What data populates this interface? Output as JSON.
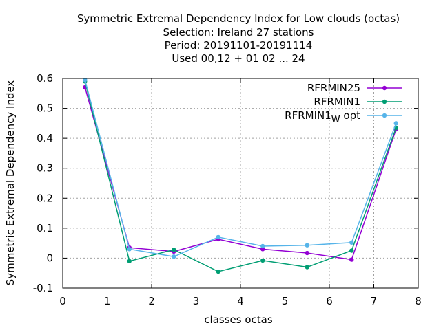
{
  "chart_data": {
    "type": "line",
    "title_lines": [
      "Symmetric Extremal Dependency Index  for Low clouds (octas)",
      "Selection: Ireland      27 stations",
      "Period: 20191101-20191114",
      "Used  00,12  + 01 02 ... 24"
    ],
    "xlabel": "classes octas",
    "ylabel": "Symmetric Extremal Dependency Index",
    "xlim": [
      0,
      8
    ],
    "ylim": [
      -0.1,
      0.6
    ],
    "xticks": [
      0,
      1,
      2,
      3,
      4,
      5,
      6,
      7,
      8
    ],
    "yticks": [
      -0.1,
      0,
      0.1,
      0.2,
      0.3,
      0.4,
      0.5,
      0.6
    ],
    "ytick_labels": [
      "-0.1",
      "0",
      "0.1",
      "0.2",
      "0.3",
      "0.4",
      "0.5",
      "0.6"
    ],
    "grid": true,
    "legend_position": "top-right",
    "x": [
      0.5,
      1.5,
      2.5,
      3.5,
      4.5,
      5.5,
      6.5,
      7.5
    ],
    "series": [
      {
        "name": "RFRMIN25",
        "legend_main": "RFRMIN25",
        "legend_sub": "",
        "legend_suffix": "",
        "color": "#9400d3",
        "values": [
          0.57,
          0.035,
          0.022,
          0.063,
          0.03,
          0.017,
          -0.005,
          0.43
        ]
      },
      {
        "name": "RFRMIN1",
        "legend_main": "RFRMIN1",
        "legend_sub": "",
        "legend_suffix": "",
        "color": "#009e73",
        "values": [
          0.59,
          -0.01,
          0.028,
          -0.045,
          -0.008,
          -0.03,
          0.025,
          0.435
        ]
      },
      {
        "name": "RFRMIN1_W opt",
        "legend_main": "RFRMIN1",
        "legend_sub": "W",
        "legend_suffix": "opt",
        "color": "#56b4e9",
        "values": [
          0.595,
          0.03,
          0.005,
          0.07,
          0.04,
          0.043,
          0.052,
          0.45
        ]
      }
    ]
  }
}
